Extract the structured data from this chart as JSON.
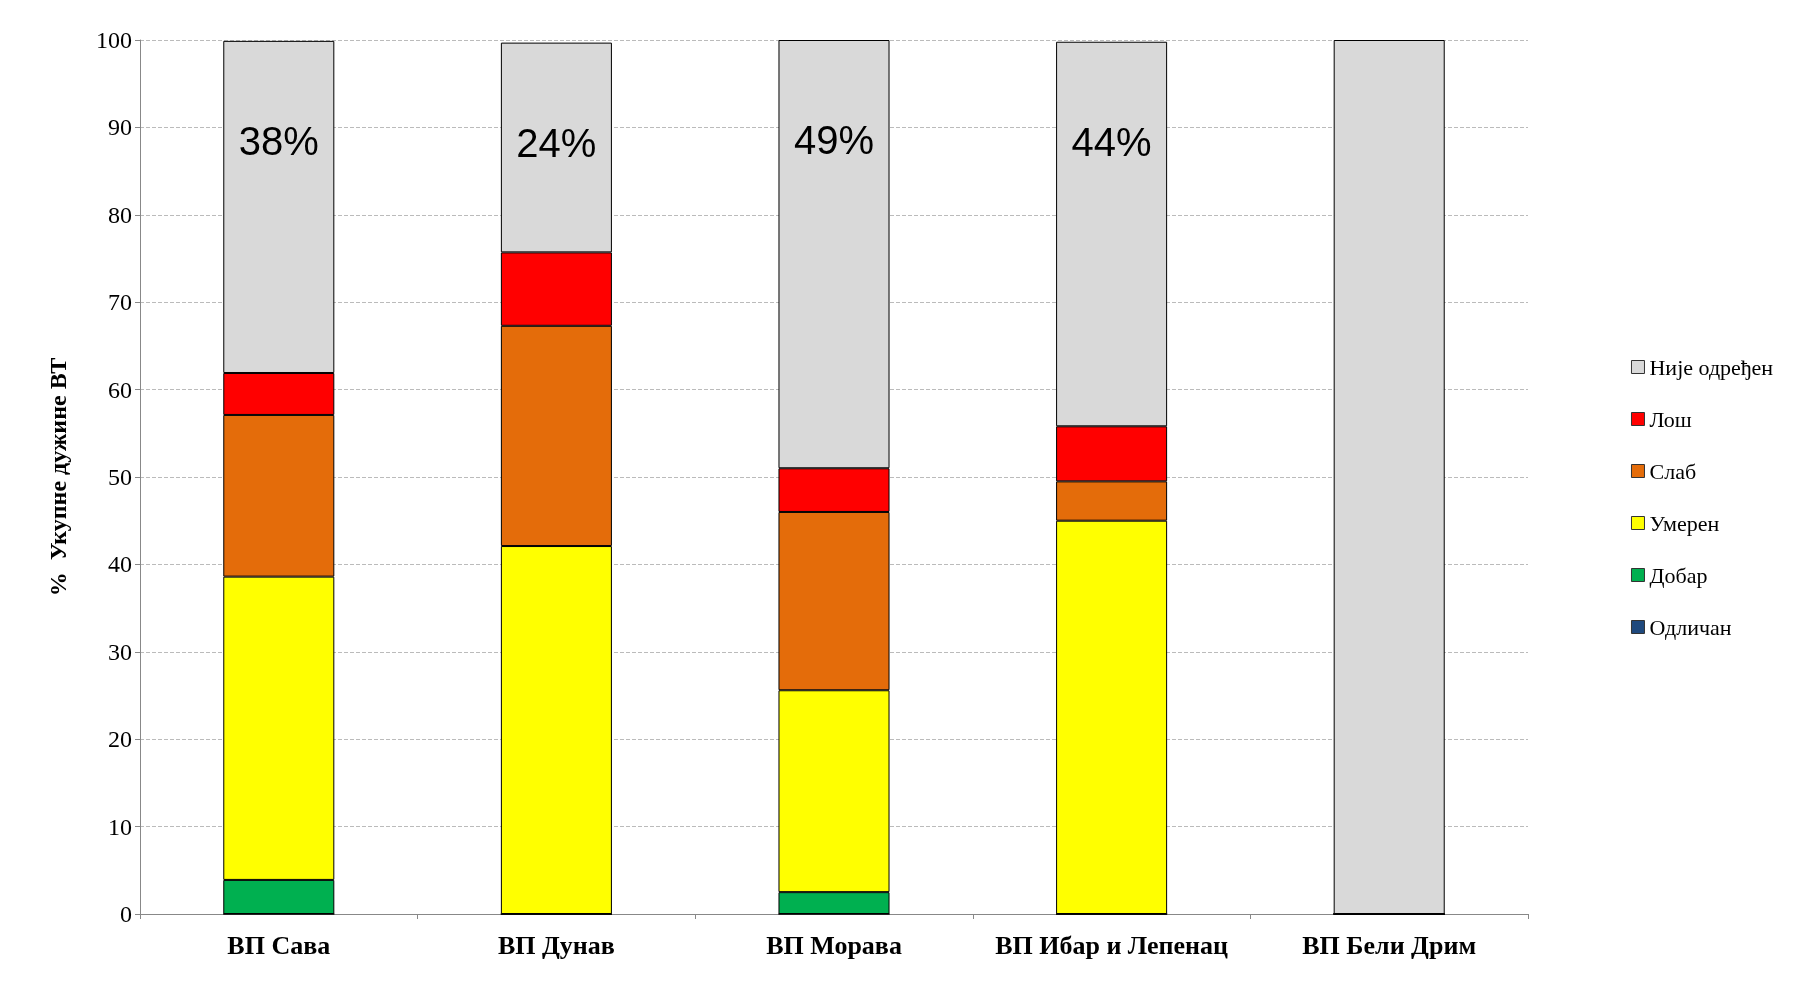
{
  "chart_data": {
    "type": "bar",
    "stacked": true,
    "ylabel": "%  Укупне дужине ВТ",
    "categories": [
      "ВП Сава",
      "ВП Дунав",
      "ВП Морава",
      "ВП Ибар и Лепенац",
      "ВП Бели Дрим"
    ],
    "series": [
      {
        "name": "Одличан",
        "color": "#1f497d",
        "values": [
          0,
          0,
          0,
          0,
          0
        ]
      },
      {
        "name": "Добар",
        "color": "#00b050",
        "values": [
          3.9,
          0,
          2.5,
          0,
          0
        ]
      },
      {
        "name": "Умерен",
        "color": "#ffff00",
        "values": [
          34.7,
          42.1,
          23.1,
          45.0,
          0
        ]
      },
      {
        "name": "Слаб",
        "color": "#e46c0a",
        "values": [
          18.5,
          25.2,
          20.4,
          4.5,
          0
        ]
      },
      {
        "name": "Лош",
        "color": "#ff0000",
        "values": [
          4.8,
          8.4,
          5.0,
          6.3,
          0
        ]
      },
      {
        "name": "Није одређен",
        "color": "#d9d9d9",
        "values": [
          38,
          24,
          49,
          44,
          100
        ],
        "value_labels": [
          "38%",
          "24%",
          "49%",
          "44%",
          null
        ]
      }
    ],
    "ylim": [
      0,
      100
    ],
    "yticks": [
      0,
      10,
      20,
      30,
      40,
      50,
      60,
      70,
      80,
      90,
      100
    ],
    "grid": "y",
    "legend": "right"
  }
}
